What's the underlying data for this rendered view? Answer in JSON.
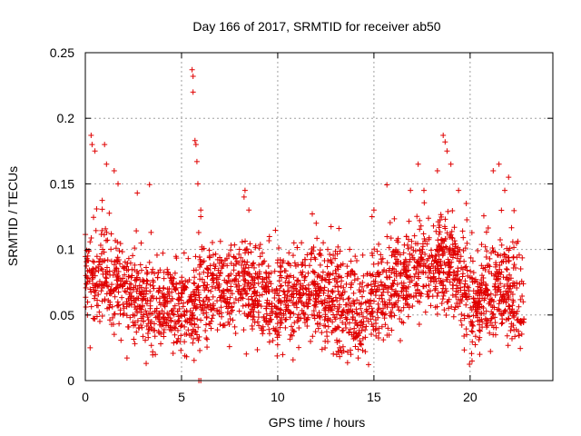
{
  "chart_data": {
    "type": "scatter",
    "title": "Day 166 of 2017, SRMTID for receiver ab50",
    "xlabel": "GPS time / hours",
    "ylabel": "SRMTID / TECUs",
    "xlim": [
      0,
      24.3
    ],
    "ylim": [
      0,
      0.25
    ],
    "xticks": [
      0,
      5,
      10,
      15,
      20
    ],
    "xtick_labels": [
      "0",
      "5",
      "10",
      "15",
      "20"
    ],
    "yticks": [
      0,
      0.05,
      0.1,
      0.15,
      0.2,
      0.25
    ],
    "ytick_labels": [
      "0",
      "0.05",
      "0.1",
      "0.15",
      "0.2",
      "0.25"
    ],
    "grid": true,
    "marker": "+",
    "series_color": "#e00000",
    "series": [
      {
        "name": "SRMTID",
        "x_range": [
          0,
          22.8
        ],
        "profile": [
          [
            0.0,
            0.082
          ],
          [
            1.0,
            0.08
          ],
          [
            2.0,
            0.07
          ],
          [
            3.0,
            0.06
          ],
          [
            4.0,
            0.058
          ],
          [
            5.0,
            0.055
          ],
          [
            5.5,
            0.05
          ],
          [
            6.0,
            0.062
          ],
          [
            7.0,
            0.065
          ],
          [
            8.0,
            0.075
          ],
          [
            9.0,
            0.068
          ],
          [
            10.0,
            0.063
          ],
          [
            11.0,
            0.064
          ],
          [
            12.0,
            0.065
          ],
          [
            13.0,
            0.06
          ],
          [
            14.0,
            0.05
          ],
          [
            15.0,
            0.06
          ],
          [
            16.0,
            0.072
          ],
          [
            17.0,
            0.08
          ],
          [
            18.0,
            0.085
          ],
          [
            19.0,
            0.09
          ],
          [
            19.5,
            0.075
          ],
          [
            20.0,
            0.06
          ],
          [
            21.0,
            0.065
          ],
          [
            22.0,
            0.07
          ],
          [
            22.8,
            0.055
          ]
        ],
        "spread": 0.018,
        "point_count": 2600,
        "outliers": [
          [
            0.3,
            0.187
          ],
          [
            0.35,
            0.18
          ],
          [
            0.5,
            0.175
          ],
          [
            1.0,
            0.18
          ],
          [
            1.1,
            0.165
          ],
          [
            1.5,
            0.16
          ],
          [
            1.7,
            0.15
          ],
          [
            2.7,
            0.143
          ],
          [
            5.55,
            0.237
          ],
          [
            5.6,
            0.232
          ],
          [
            5.6,
            0.22
          ],
          [
            5.7,
            0.183
          ],
          [
            5.75,
            0.18
          ],
          [
            5.8,
            0.167
          ],
          [
            5.85,
            0.15
          ],
          [
            6.0,
            0.13
          ],
          [
            6.0,
            0.125
          ],
          [
            8.3,
            0.145
          ],
          [
            8.25,
            0.14
          ],
          [
            8.5,
            0.13
          ],
          [
            17.3,
            0.165
          ],
          [
            17.6,
            0.145
          ],
          [
            18.3,
            0.16
          ],
          [
            18.6,
            0.187
          ],
          [
            18.7,
            0.182
          ],
          [
            18.8,
            0.175
          ],
          [
            19.0,
            0.165
          ],
          [
            19.4,
            0.145
          ],
          [
            21.2,
            0.16
          ],
          [
            21.5,
            0.165
          ],
          [
            22.0,
            0.155
          ],
          [
            21.8,
            0.145
          ],
          [
            15.0,
            0.13
          ],
          [
            16.9,
            0.145
          ],
          [
            12.0,
            0.12
          ],
          [
            12.6,
            0.1
          ],
          [
            14.9,
            0.125
          ],
          [
            19.8,
            0.135
          ],
          [
            20.1,
            0.015
          ],
          [
            20.5,
            0.02
          ],
          [
            5.9,
            0.0
          ],
          [
            6.0,
            0.0
          ],
          [
            13.8,
            0.02
          ],
          [
            3.5,
            0.022
          ],
          [
            0.25,
            0.025
          ]
        ]
      }
    ]
  }
}
